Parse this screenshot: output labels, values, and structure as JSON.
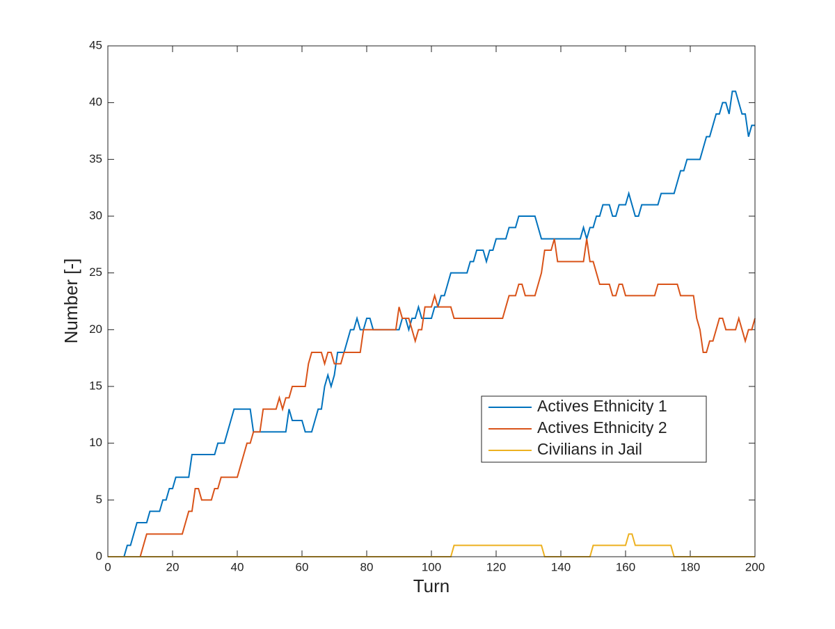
{
  "chart_data": {
    "type": "line",
    "xlabel": "Turn",
    "ylabel": "Number [-]",
    "x": [
      0,
      1,
      2,
      3,
      4,
      5,
      6,
      7,
      8,
      9,
      10,
      11,
      12,
      13,
      14,
      15,
      16,
      17,
      18,
      19,
      20,
      21,
      22,
      23,
      24,
      25,
      26,
      27,
      28,
      29,
      30,
      31,
      32,
      33,
      34,
      35,
      36,
      37,
      38,
      39,
      40,
      41,
      42,
      43,
      44,
      45,
      46,
      47,
      48,
      49,
      50,
      51,
      52,
      53,
      54,
      55,
      56,
      57,
      58,
      59,
      60,
      61,
      62,
      63,
      64,
      65,
      66,
      67,
      68,
      69,
      70,
      71,
      72,
      73,
      74,
      75,
      76,
      77,
      78,
      79,
      80,
      81,
      82,
      83,
      84,
      85,
      86,
      87,
      88,
      89,
      90,
      91,
      92,
      93,
      94,
      95,
      96,
      97,
      98,
      99,
      100,
      101,
      102,
      103,
      104,
      105,
      106,
      107,
      108,
      109,
      110,
      111,
      112,
      113,
      114,
      115,
      116,
      117,
      118,
      119,
      120,
      121,
      122,
      123,
      124,
      125,
      126,
      127,
      128,
      129,
      130,
      131,
      132,
      133,
      134,
      135,
      136,
      137,
      138,
      139,
      140,
      141,
      142,
      143,
      144,
      145,
      146,
      147,
      148,
      149,
      150,
      151,
      152,
      153,
      154,
      155,
      156,
      157,
      158,
      159,
      160,
      161,
      162,
      163,
      164,
      165,
      166,
      167,
      168,
      169,
      170,
      171,
      172,
      173,
      174,
      175,
      176,
      177,
      178,
      179,
      180,
      181,
      182,
      183,
      184,
      185,
      186,
      187,
      188,
      189,
      190,
      191,
      192,
      193,
      194,
      195,
      196,
      197,
      198,
      199,
      200
    ],
    "series": [
      {
        "name": "Actives Ethnicity 1",
        "color": "#0072BD",
        "values": [
          0,
          0,
          0,
          0,
          0,
          0,
          1,
          1,
          2,
          3,
          3,
          3,
          3,
          4,
          4,
          4,
          4,
          5,
          5,
          6,
          6,
          7,
          7,
          7,
          7,
          7,
          9,
          9,
          9,
          9,
          9,
          9,
          9,
          9,
          10,
          10,
          10,
          11,
          12,
          13,
          13,
          13,
          13,
          13,
          13,
          11,
          11,
          11,
          11,
          11,
          11,
          11,
          11,
          11,
          11,
          11,
          13,
          12,
          12,
          12,
          12,
          11,
          11,
          11,
          12,
          13,
          13,
          15,
          16,
          15,
          16,
          18,
          18,
          18,
          19,
          20,
          20,
          21,
          20,
          20,
          21,
          21,
          20,
          20,
          20,
          20,
          20,
          20,
          20,
          20,
          20,
          21,
          21,
          20,
          21,
          21,
          22,
          21,
          21,
          21,
          21,
          22,
          22,
          23,
          23,
          24,
          25,
          25,
          25,
          25,
          25,
          25,
          26,
          26,
          27,
          27,
          27,
          26,
          27,
          27,
          28,
          28,
          28,
          28,
          29,
          29,
          29,
          30,
          30,
          30,
          30,
          30,
          30,
          29,
          28,
          28,
          28,
          28,
          28,
          28,
          28,
          28,
          28,
          28,
          28,
          28,
          28,
          29,
          28,
          29,
          29,
          30,
          30,
          31,
          31,
          31,
          30,
          30,
          31,
          31,
          31,
          32,
          31,
          30,
          30,
          31,
          31,
          31,
          31,
          31,
          31,
          32,
          32,
          32,
          32,
          32,
          33,
          34,
          34,
          35,
          35,
          35,
          35,
          35,
          36,
          37,
          37,
          38,
          39,
          39,
          40,
          40,
          39,
          41,
          41,
          40,
          39,
          39,
          37,
          38,
          38
        ]
      },
      {
        "name": "Actives Ethnicity 2",
        "color": "#D95319",
        "values": [
          0,
          0,
          0,
          0,
          0,
          0,
          0,
          0,
          0,
          0,
          0,
          1,
          2,
          2,
          2,
          2,
          2,
          2,
          2,
          2,
          2,
          2,
          2,
          2,
          3,
          4,
          4,
          6,
          6,
          5,
          5,
          5,
          5,
          6,
          6,
          7,
          7,
          7,
          7,
          7,
          7,
          8,
          9,
          10,
          10,
          11,
          11,
          11,
          13,
          13,
          13,
          13,
          13,
          14,
          13,
          14,
          14,
          15,
          15,
          15,
          15,
          15,
          17,
          18,
          18,
          18,
          18,
          17,
          18,
          18,
          17,
          17,
          17,
          18,
          18,
          18,
          18,
          18,
          18,
          20,
          20,
          20,
          20,
          20,
          20,
          20,
          20,
          20,
          20,
          20,
          22,
          21,
          21,
          21,
          20,
          19,
          20,
          20,
          22,
          22,
          22,
          23,
          22,
          22,
          22,
          22,
          22,
          21,
          21,
          21,
          21,
          21,
          21,
          21,
          21,
          21,
          21,
          21,
          21,
          21,
          21,
          21,
          21,
          22,
          23,
          23,
          23,
          24,
          24,
          23,
          23,
          23,
          23,
          24,
          25,
          27,
          27,
          27,
          28,
          26,
          26,
          26,
          26,
          26,
          26,
          26,
          26,
          26,
          28,
          26,
          26,
          25,
          24,
          24,
          24,
          24,
          23,
          23,
          24,
          24,
          23,
          23,
          23,
          23,
          23,
          23,
          23,
          23,
          23,
          23,
          24,
          24,
          24,
          24,
          24,
          24,
          24,
          23,
          23,
          23,
          23,
          23,
          21,
          20,
          18,
          18,
          19,
          19,
          20,
          21,
          21,
          20,
          20,
          20,
          20,
          21,
          20,
          19,
          20,
          20,
          21
        ]
      },
      {
        "name": "Civilians in Jail",
        "color": "#EDB120",
        "values": [
          0,
          0,
          0,
          0,
          0,
          0,
          0,
          0,
          0,
          0,
          0,
          0,
          0,
          0,
          0,
          0,
          0,
          0,
          0,
          0,
          0,
          0,
          0,
          0,
          0,
          0,
          0,
          0,
          0,
          0,
          0,
          0,
          0,
          0,
          0,
          0,
          0,
          0,
          0,
          0,
          0,
          0,
          0,
          0,
          0,
          0,
          0,
          0,
          0,
          0,
          0,
          0,
          0,
          0,
          0,
          0,
          0,
          0,
          0,
          0,
          0,
          0,
          0,
          0,
          0,
          0,
          0,
          0,
          0,
          0,
          0,
          0,
          0,
          0,
          0,
          0,
          0,
          0,
          0,
          0,
          0,
          0,
          0,
          0,
          0,
          0,
          0,
          0,
          0,
          0,
          0,
          0,
          0,
          0,
          0,
          0,
          0,
          0,
          0,
          0,
          0,
          0,
          0,
          0,
          0,
          0,
          0,
          1,
          1,
          1,
          1,
          1,
          1,
          1,
          1,
          1,
          1,
          1,
          1,
          1,
          1,
          1,
          1,
          1,
          1,
          1,
          1,
          1,
          1,
          1,
          1,
          1,
          1,
          1,
          1,
          0,
          0,
          0,
          0,
          0,
          0,
          0,
          0,
          0,
          0,
          0,
          0,
          0,
          0,
          0,
          1,
          1,
          1,
          1,
          1,
          1,
          1,
          1,
          1,
          1,
          1,
          2,
          2,
          1,
          1,
          1,
          1,
          1,
          1,
          1,
          1,
          1,
          1,
          1,
          1,
          0,
          0,
          0,
          0,
          0,
          0,
          0,
          0,
          0,
          0,
          0,
          0,
          0,
          0,
          0,
          0,
          0,
          0,
          0,
          0,
          0,
          0,
          0,
          0,
          0,
          0
        ]
      }
    ],
    "xlim": [
      0,
      200
    ],
    "xticks": [
      0,
      20,
      40,
      60,
      80,
      100,
      120,
      140,
      160,
      180,
      200
    ],
    "ylim": [
      0,
      45
    ],
    "yticks": [
      0,
      5,
      10,
      15,
      20,
      25,
      30,
      35,
      40,
      45
    ],
    "grid": false,
    "legend": "east"
  }
}
